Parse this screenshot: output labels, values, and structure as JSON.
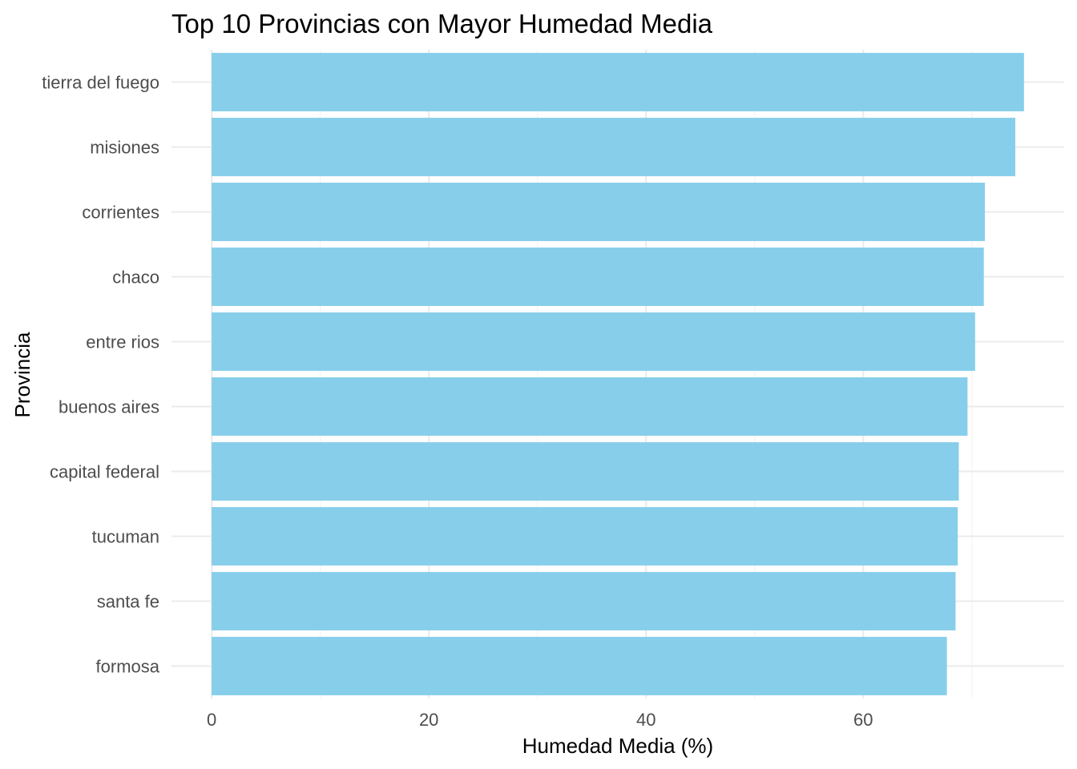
{
  "chart_data": {
    "type": "bar",
    "orientation": "horizontal",
    "title": "Top 10 Provincias con Mayor Humedad Media",
    "xlabel": "Humedad Media (%)",
    "ylabel": "Provincia",
    "categories": [
      "tierra del fuego",
      "misiones",
      "corrientes",
      "chaco",
      "entre rios",
      "buenos aires",
      "capital federal",
      "tucuman",
      "santa fe",
      "formosa"
    ],
    "values": [
      74.8,
      74.0,
      71.2,
      71.1,
      70.3,
      69.6,
      68.8,
      68.7,
      68.5,
      67.7
    ],
    "xlim": [
      -3.7,
      78.5
    ],
    "x_ticks": [
      0,
      20,
      40,
      60
    ],
    "x_tick_labels": [
      "0",
      "20",
      "40",
      "60"
    ],
    "grid": true,
    "bar_color": "#87CEEB"
  }
}
